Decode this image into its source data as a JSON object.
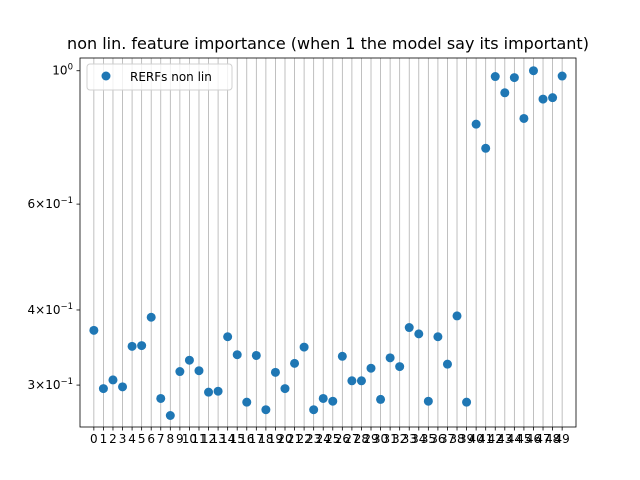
{
  "chart_data": {
    "type": "scatter",
    "title": "non lin. feature importance (when 1 the model say its important)",
    "xlabel": "",
    "ylabel": "",
    "y_scale": "log",
    "ylim": [
      0.2555,
      1.05
    ],
    "xlim": [
      -1.45,
      50.45
    ],
    "grid": "x",
    "legend_position": "top-left",
    "x_ticks": [
      "0",
      "1",
      "2",
      "3",
      "4",
      "5",
      "6",
      "7",
      "8",
      "9",
      "10",
      "11",
      "12",
      "13",
      "14",
      "15",
      "16",
      "17",
      "18",
      "19",
      "20",
      "21",
      "22",
      "23",
      "24",
      "25",
      "26",
      "27",
      "28",
      "29",
      "30",
      "31",
      "32",
      "33",
      "34",
      "35",
      "36",
      "37",
      "38",
      "39",
      "40",
      "41",
      "42",
      "43",
      "44",
      "45",
      "46",
      "47",
      "48",
      "49"
    ],
    "y_ticks": [
      {
        "value": 0.3,
        "mantissa": "3",
        "exp": "−1"
      },
      {
        "value": 0.4,
        "mantissa": "4",
        "exp": "−1"
      },
      {
        "value": 0.6,
        "mantissa": "6",
        "exp": "−1"
      },
      {
        "value": 1.0,
        "base": "10",
        "exp": "0"
      }
    ],
    "colors": {
      "series": "#1f77b4",
      "grid": "#b0b0b0"
    },
    "series": [
      {
        "name": "RERFs non lin",
        "x": [
          0,
          1,
          2,
          3,
          4,
          5,
          6,
          7,
          8,
          9,
          10,
          11,
          12,
          13,
          14,
          15,
          16,
          17,
          18,
          19,
          20,
          21,
          22,
          23,
          24,
          25,
          26,
          27,
          28,
          29,
          30,
          31,
          32,
          33,
          34,
          35,
          36,
          37,
          38,
          39,
          40,
          41,
          42,
          43,
          44,
          45,
          46,
          47,
          48,
          49
        ],
        "values": [
          0.37,
          0.296,
          0.306,
          0.298,
          0.348,
          0.349,
          0.389,
          0.285,
          0.267,
          0.316,
          0.33,
          0.317,
          0.292,
          0.293,
          0.361,
          0.337,
          0.281,
          0.336,
          0.273,
          0.315,
          0.296,
          0.326,
          0.347,
          0.273,
          0.285,
          0.282,
          0.335,
          0.305,
          0.305,
          0.32,
          0.284,
          0.333,
          0.322,
          0.374,
          0.365,
          0.282,
          0.361,
          0.325,
          0.391,
          0.281,
          0.815,
          0.743,
          0.978,
          0.919,
          0.974,
          0.833,
          1.0,
          0.897,
          0.902,
          0.98
        ]
      }
    ]
  }
}
